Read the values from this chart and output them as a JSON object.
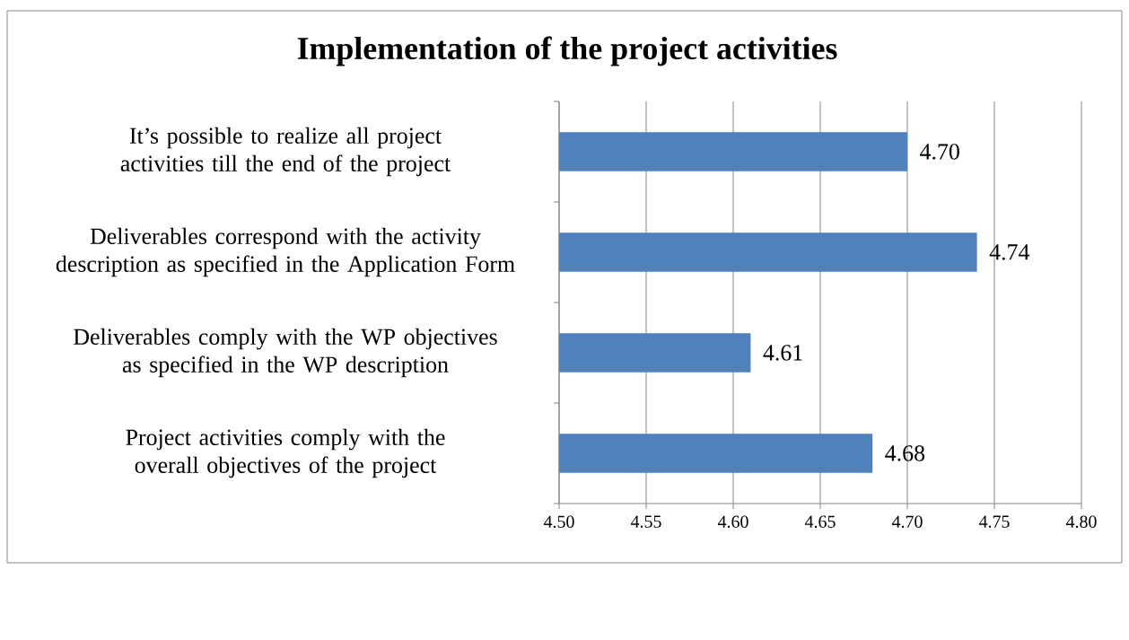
{
  "chart_data": {
    "type": "bar",
    "orientation": "horizontal",
    "title": "Implementation of the project activities",
    "categories": [
      "It’s possible to realize all project activities till the end of the project",
      "Deliverables correspond with the activity description as specified in the Application Form",
      "Deliverables comply with the WP objectives as specified in the WP description",
      "Project activities comply with the overall objectives of the project"
    ],
    "values": [
      4.7,
      4.74,
      4.61,
      4.68
    ],
    "value_labels": [
      "4.70",
      "4.74",
      "4.61",
      "4.68"
    ],
    "color": "#4f81bd",
    "xlim": [
      4.5,
      4.8
    ],
    "xticks": [
      {
        "value": 4.5,
        "label": "4.50"
      },
      {
        "value": 4.55,
        "label": "4.55"
      },
      {
        "value": 4.6,
        "label": "4.60"
      },
      {
        "value": 4.65,
        "label": "4.65"
      },
      {
        "value": 4.7,
        "label": "4.70"
      },
      {
        "value": 4.75,
        "label": "4.75"
      },
      {
        "value": 4.8,
        "label": "4.80"
      }
    ],
    "grid": "x"
  }
}
